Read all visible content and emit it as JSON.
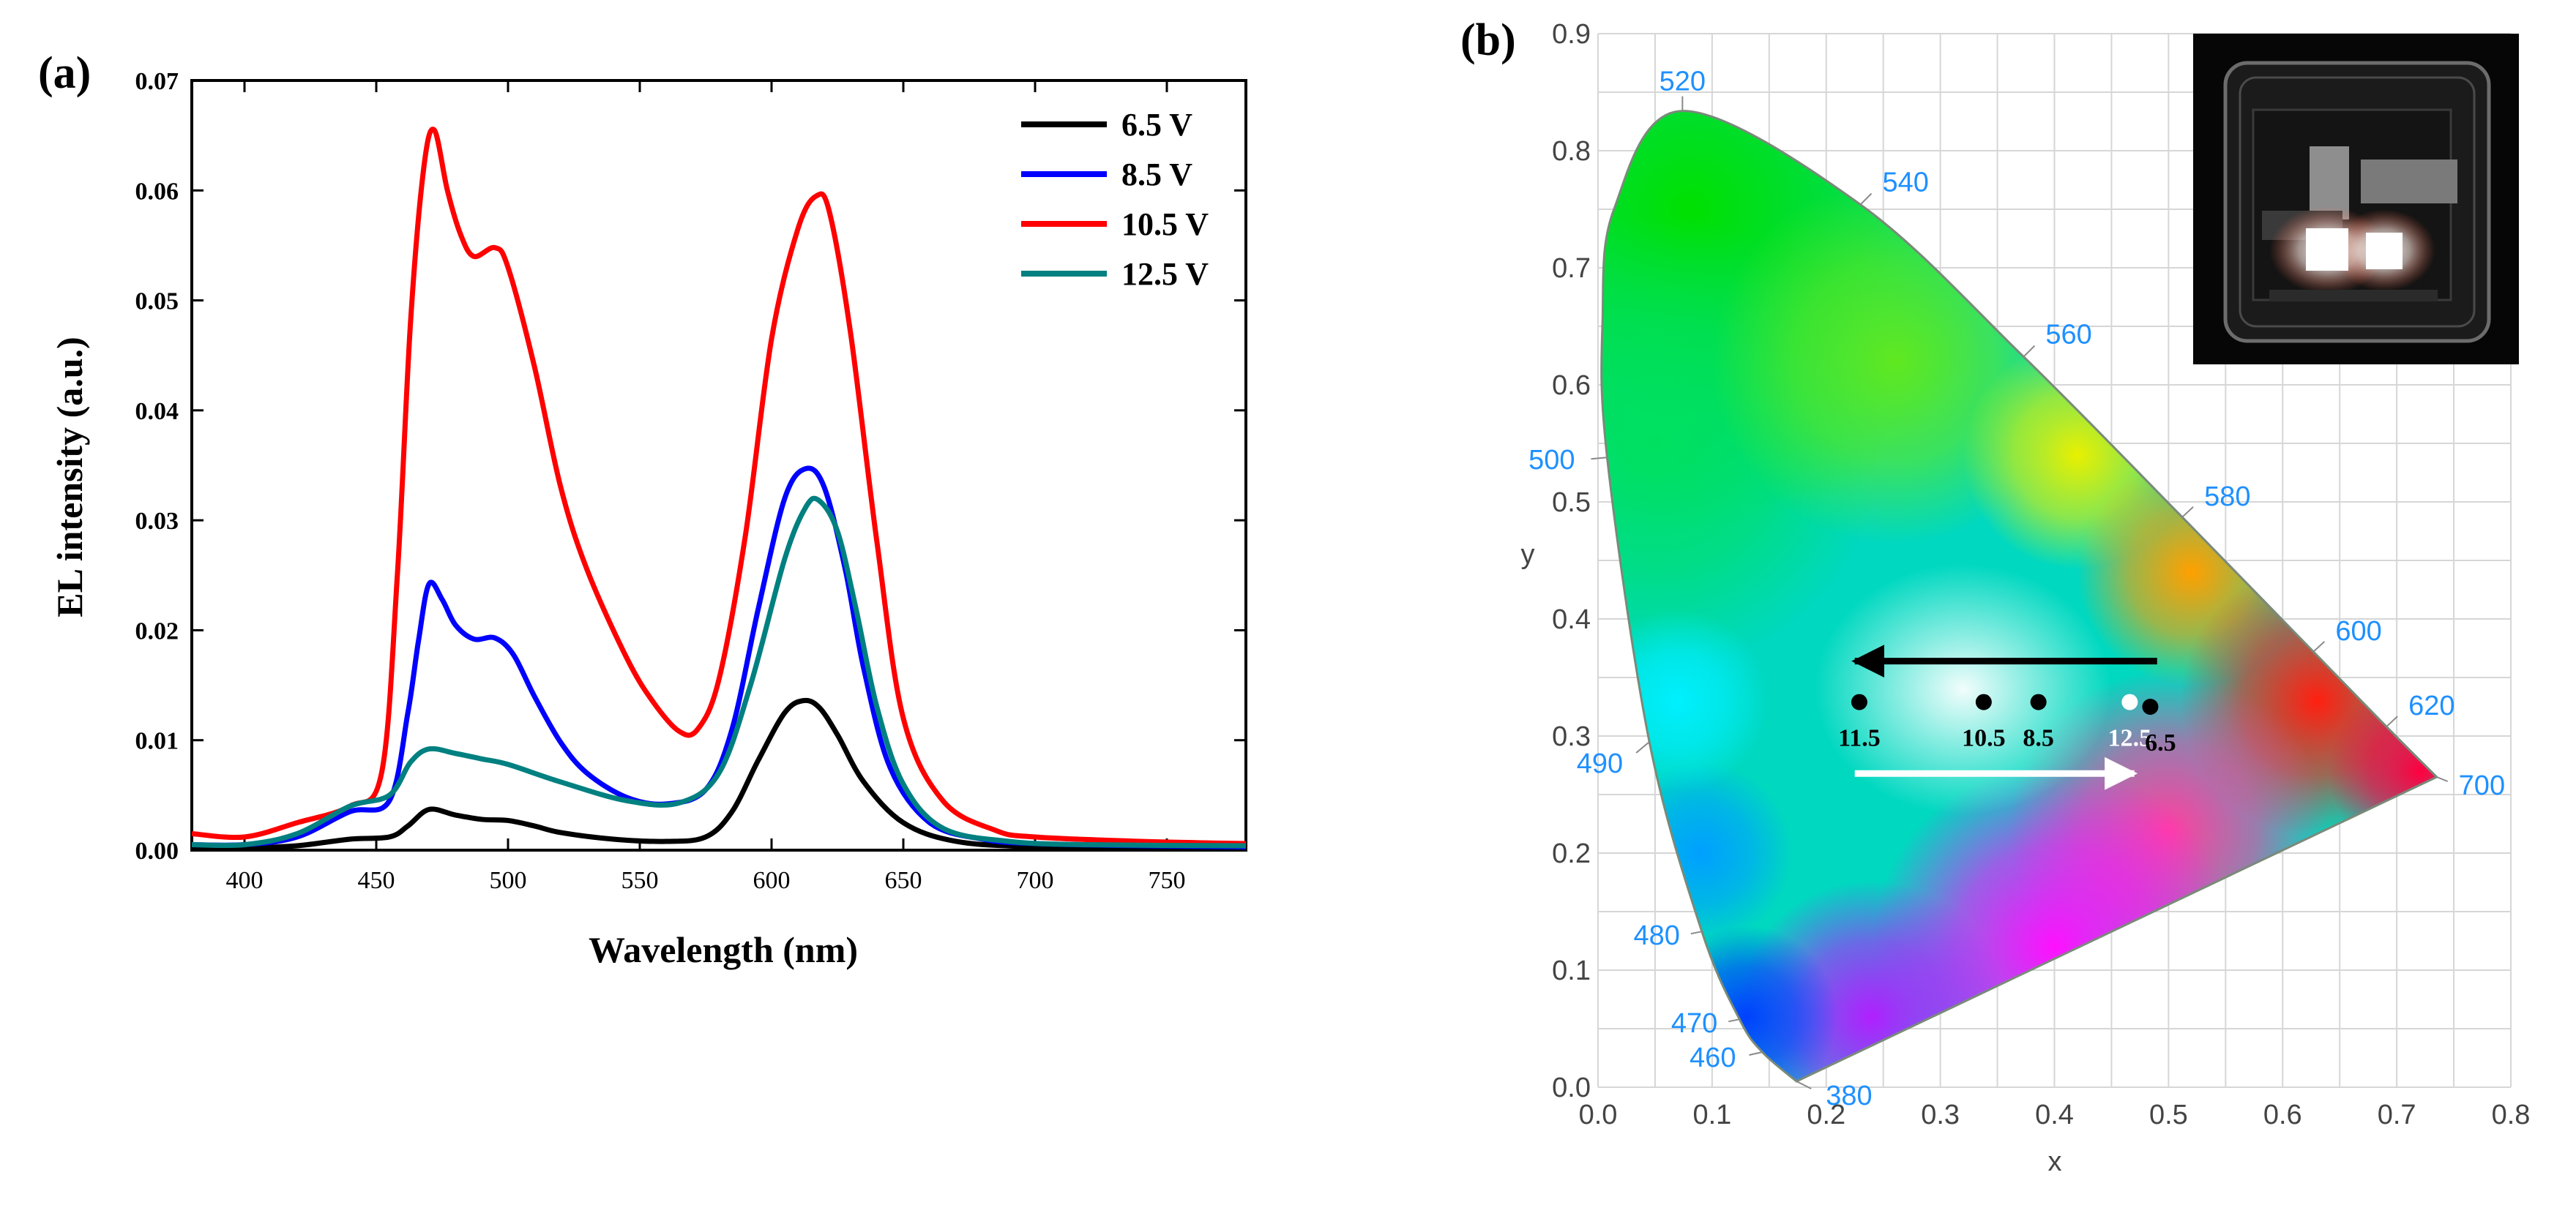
{
  "panel_a": {
    "label": "(a)",
    "chart_data": {
      "type": "line",
      "title": "",
      "xlabel": "Wavelength (nm)",
      "ylabel": "EL intensity (a.u.)",
      "xlim": [
        380,
        780
      ],
      "ylim": [
        0,
        0.07
      ],
      "x_ticks": [
        400,
        450,
        500,
        550,
        600,
        650,
        700,
        750
      ],
      "x_tick_labels": [
        "400",
        "450",
        "500",
        "550",
        "600",
        "650",
        "700",
        "750"
      ],
      "y_ticks": [
        0,
        0.01,
        0.02,
        0.03,
        0.04,
        0.05,
        0.06,
        0.07
      ],
      "y_tick_labels": [
        "0.00",
        "0.01",
        "0.02",
        "0.03",
        "0.04",
        "0.05",
        "0.06",
        "0.07"
      ],
      "legend_position": "top-right",
      "series": [
        {
          "name": "6.5 V",
          "color": "#000000",
          "x": [
            380,
            400,
            420,
            440,
            455,
            462,
            470,
            480,
            490,
            500,
            510,
            520,
            540,
            560,
            575,
            585,
            595,
            605,
            612,
            618,
            625,
            635,
            650,
            670,
            700,
            740,
            780
          ],
          "y": [
            0.0002,
            0.0002,
            0.0004,
            0.001,
            0.0012,
            0.0022,
            0.0037,
            0.0032,
            0.0028,
            0.0027,
            0.0022,
            0.0016,
            0.001,
            0.0008,
            0.0012,
            0.0035,
            0.0082,
            0.0125,
            0.0136,
            0.013,
            0.0105,
            0.0062,
            0.0025,
            0.0008,
            0.0003,
            0.0002,
            0.0002
          ]
        },
        {
          "name": "8.5 V",
          "color": "#0000ff",
          "x": [
            380,
            400,
            420,
            440,
            455,
            462,
            466,
            470,
            475,
            480,
            487,
            495,
            502,
            510,
            520,
            530,
            545,
            560,
            575,
            585,
            595,
            605,
            613,
            620,
            628,
            635,
            645,
            660,
            680,
            700,
            740,
            780
          ],
          "y": [
            0.0005,
            0.0005,
            0.0012,
            0.0035,
            0.0045,
            0.0125,
            0.019,
            0.0242,
            0.0228,
            0.0205,
            0.0192,
            0.0193,
            0.0178,
            0.014,
            0.0098,
            0.007,
            0.0048,
            0.0042,
            0.0055,
            0.011,
            0.022,
            0.032,
            0.0347,
            0.033,
            0.0255,
            0.0165,
            0.0075,
            0.0025,
            0.001,
            0.0006,
            0.0004,
            0.0003
          ]
        },
        {
          "name": "10.5 V",
          "color": "#ff0000",
          "x": [
            380,
            400,
            420,
            440,
            452,
            458,
            463,
            468,
            472,
            477,
            482,
            487,
            495,
            500,
            510,
            520,
            530,
            545,
            555,
            565,
            572,
            580,
            590,
            600,
            610,
            617,
            622,
            630,
            640,
            650,
            665,
            685,
            700,
            740,
            780
          ],
          "y": [
            0.0015,
            0.0012,
            0.0025,
            0.004,
            0.007,
            0.025,
            0.048,
            0.062,
            0.0655,
            0.06,
            0.056,
            0.054,
            0.0548,
            0.053,
            0.044,
            0.033,
            0.0255,
            0.0175,
            0.0135,
            0.0108,
            0.011,
            0.0155,
            0.0285,
            0.0465,
            0.0565,
            0.0595,
            0.058,
            0.047,
            0.028,
            0.012,
            0.0045,
            0.0018,
            0.0012,
            0.0008,
            0.0006
          ]
        },
        {
          "name": "12.5 V",
          "color": "#008080",
          "x": [
            380,
            400,
            420,
            440,
            455,
            463,
            470,
            480,
            490,
            500,
            520,
            545,
            565,
            580,
            592,
            605,
            613,
            618,
            625,
            632,
            640,
            650,
            665,
            690,
            720,
            780
          ],
          "y": [
            0.0005,
            0.0005,
            0.0015,
            0.004,
            0.005,
            0.008,
            0.0092,
            0.0088,
            0.0083,
            0.0078,
            0.0062,
            0.0045,
            0.0043,
            0.007,
            0.015,
            0.0265,
            0.0312,
            0.0318,
            0.029,
            0.022,
            0.013,
            0.006,
            0.002,
            0.0008,
            0.0005,
            0.0004
          ]
        }
      ]
    }
  },
  "panel_b": {
    "label": "(b)",
    "chart_data": {
      "type": "scatter",
      "title": "",
      "xlabel": "x",
      "ylabel": "y",
      "xlim": [
        0,
        0.8
      ],
      "ylim": [
        0,
        0.9
      ],
      "x_ticks": [
        0,
        0.1,
        0.2,
        0.3,
        0.4,
        0.5,
        0.6,
        0.7,
        0.8
      ],
      "x_tick_labels": [
        "0.0",
        "0.1",
        "0.2",
        "0.3",
        "0.4",
        "0.5",
        "0.6",
        "0.7",
        "0.8"
      ],
      "y_ticks": [
        0,
        0.1,
        0.2,
        0.3,
        0.4,
        0.5,
        0.6,
        0.7,
        0.8,
        0.9
      ],
      "y_tick_labels": [
        "0.0",
        "0.1",
        "0.2",
        "0.3",
        "0.4",
        "0.5",
        "0.6",
        "0.7",
        "0.8",
        "0.9"
      ],
      "grid": true,
      "locus": [
        {
          "nm": "380",
          "x": 0.174,
          "y": 0.005
        },
        {
          "nm": "460",
          "x": 0.144,
          "y": 0.03
        },
        {
          "nm": "470",
          "x": 0.124,
          "y": 0.058
        },
        {
          "nm": "480",
          "x": 0.091,
          "y": 0.133
        },
        {
          "nm": "490",
          "x": 0.045,
          "y": 0.295
        },
        {
          "nm": "500",
          "x": 0.008,
          "y": 0.538
        },
        {
          "nm": "",
          "x": 0.004,
          "y": 0.655
        },
        {
          "nm": "",
          "x": 0.014,
          "y": 0.75
        },
        {
          "nm": "520",
          "x": 0.074,
          "y": 0.834
        },
        {
          "nm": "540",
          "x": 0.23,
          "y": 0.754
        },
        {
          "nm": "560",
          "x": 0.373,
          "y": 0.624
        },
        {
          "nm": "580",
          "x": 0.512,
          "y": 0.487
        },
        {
          "nm": "600",
          "x": 0.627,
          "y": 0.372
        },
        {
          "nm": "620",
          "x": 0.691,
          "y": 0.308
        },
        {
          "nm": "700",
          "x": 0.735,
          "y": 0.265
        }
      ],
      "points": [
        {
          "label": "11.5",
          "x": 0.229,
          "y": 0.329,
          "color": "#000000"
        },
        {
          "label": "10.5",
          "x": 0.338,
          "y": 0.329,
          "color": "#000000"
        },
        {
          "label": "8.5",
          "x": 0.386,
          "y": 0.329,
          "color": "#000000"
        },
        {
          "label": "12.5",
          "x": 0.466,
          "y": 0.329,
          "color": "#ffffff"
        },
        {
          "label": "6.5",
          "x": 0.484,
          "y": 0.325,
          "color": "#000000"
        }
      ],
      "arrows": [
        {
          "from": [
            0.49,
            0.364
          ],
          "to": [
            0.225,
            0.364
          ],
          "color": "#000000"
        },
        {
          "from": [
            0.225,
            0.268
          ],
          "to": [
            0.47,
            0.268
          ],
          "color": "#ffffff"
        }
      ],
      "inset": "photo of electroluminescent device with two glowing pixels",
      "label_color": "#1e90ff"
    }
  }
}
